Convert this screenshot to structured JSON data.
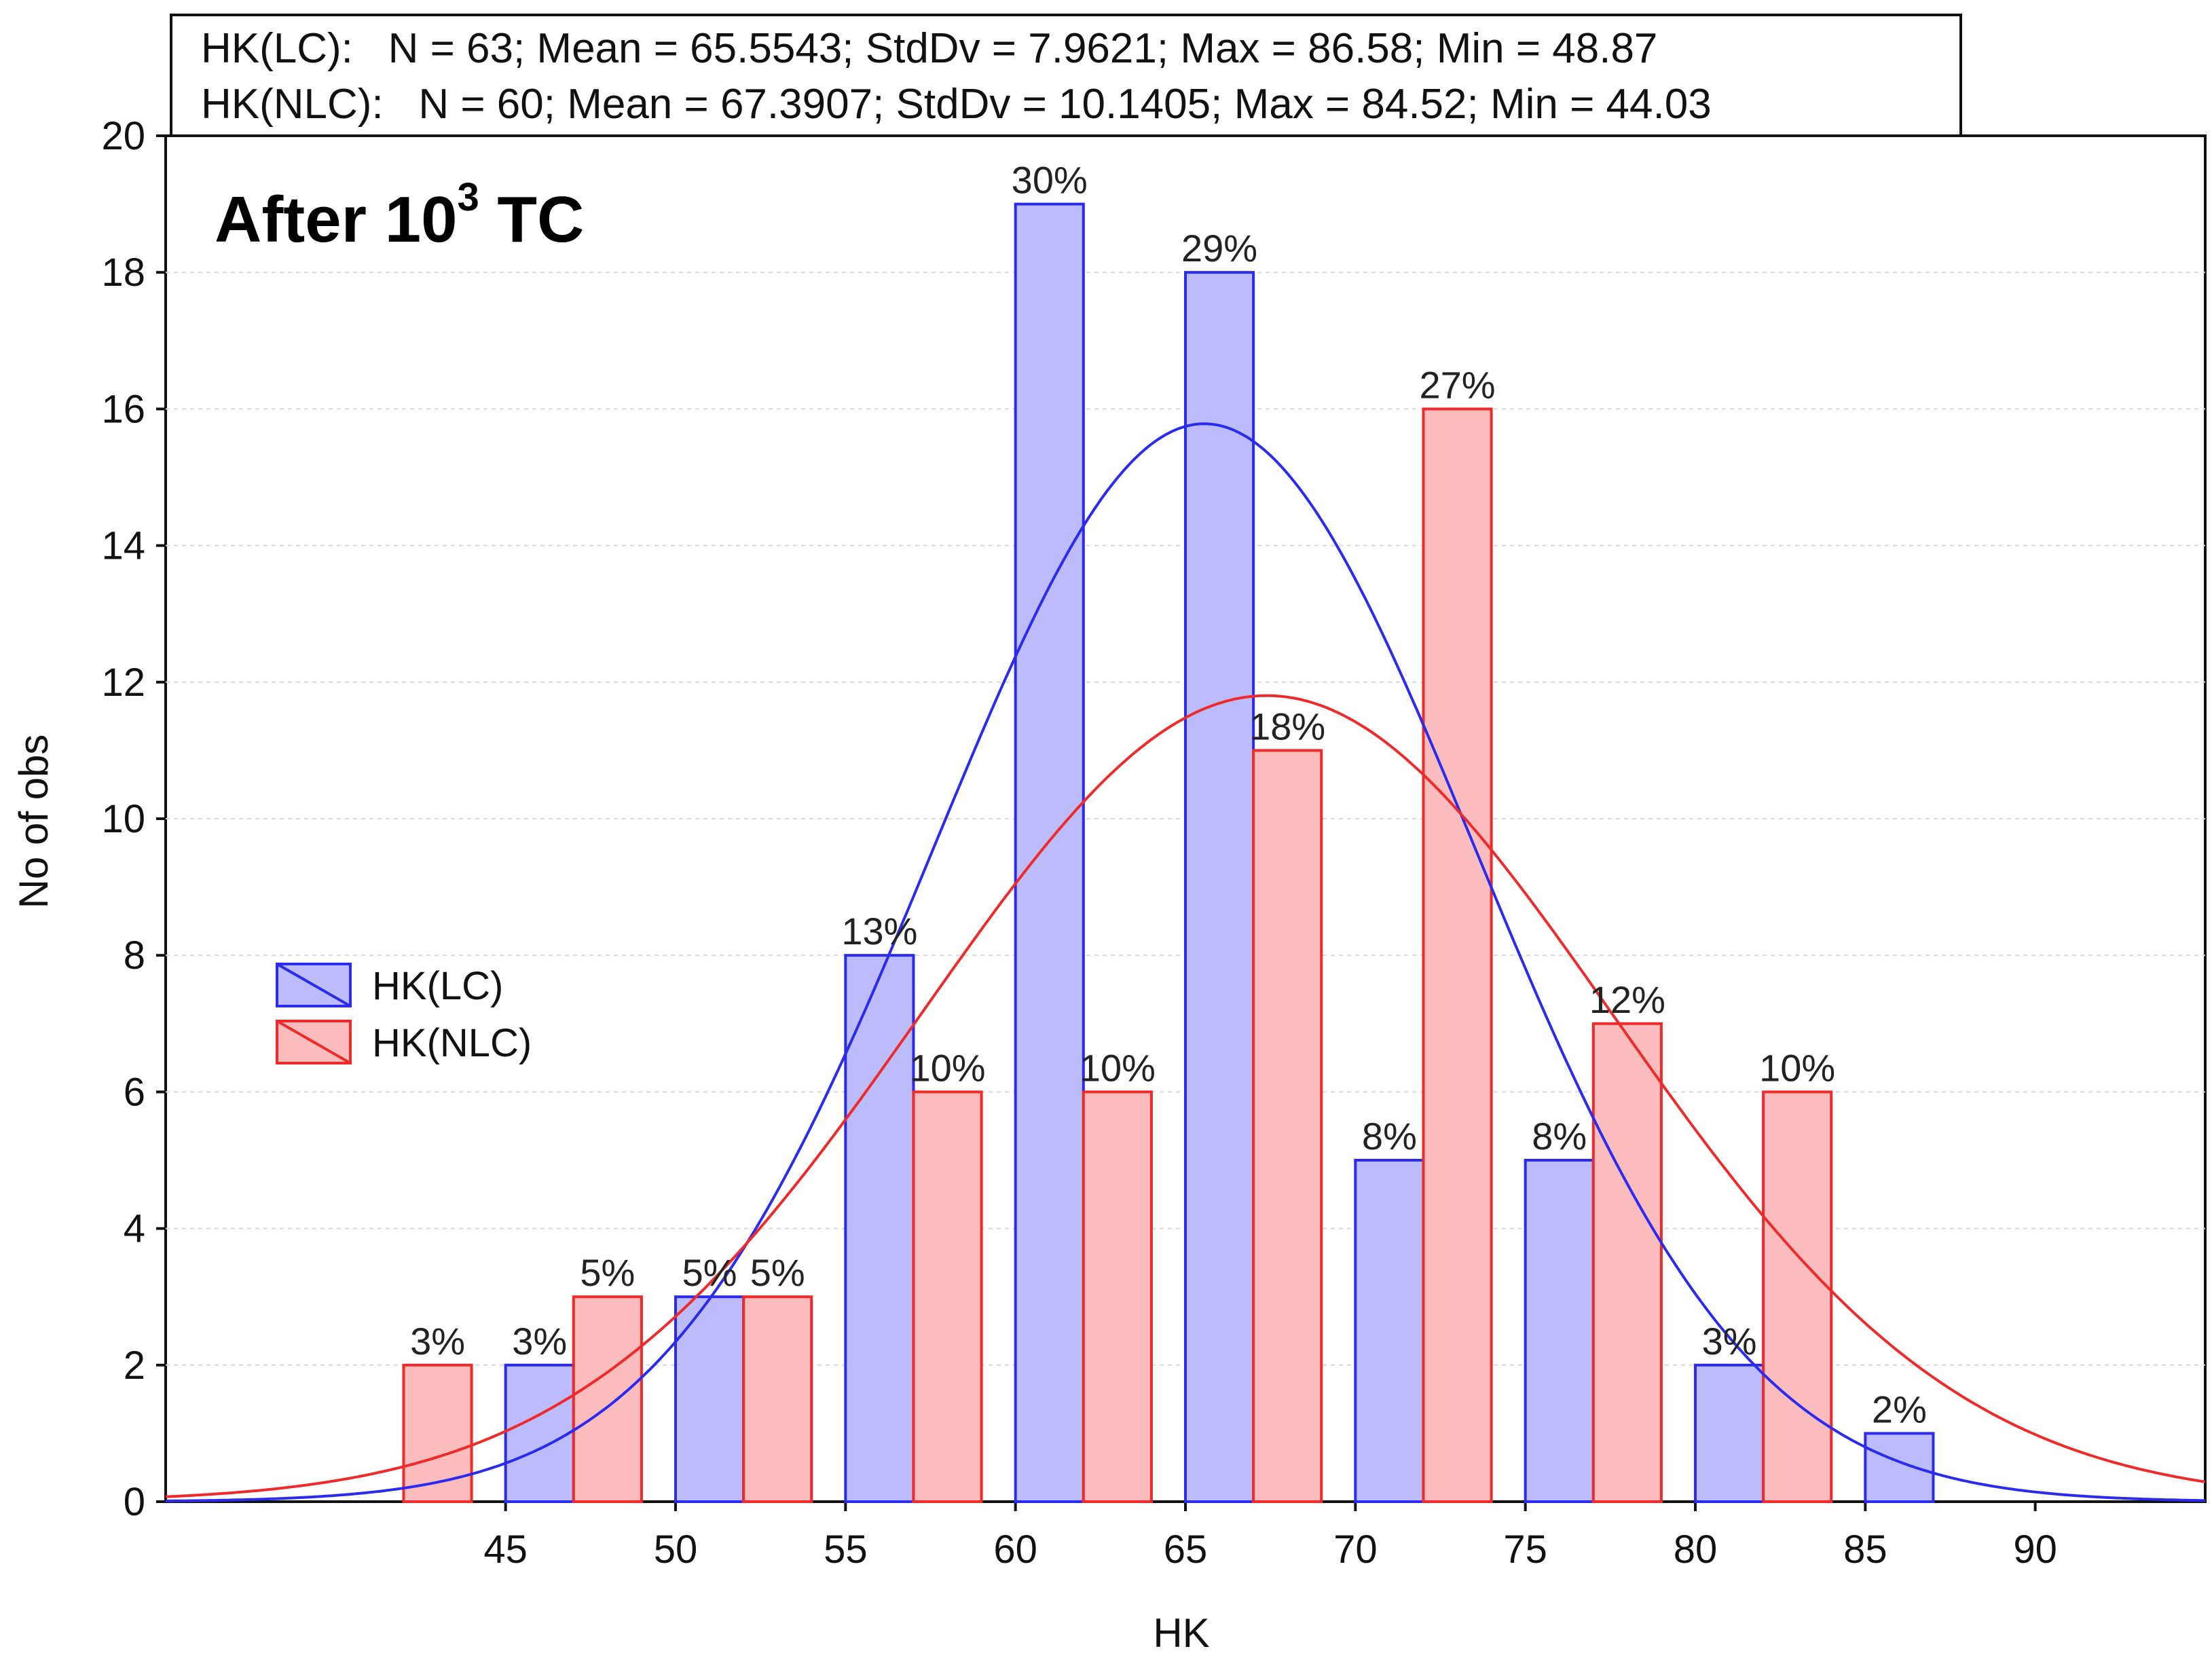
{
  "stats_box": {
    "line1": "HK(LC):   N = 63; Mean = 65.5543; StdDv = 7.9621; Max = 86.58; Min = 48.87",
    "line2": "HK(NLC):   N = 60; Mean = 67.3907; StdDv = 10.1405; Max = 84.52; Min = 44.03"
  },
  "chart_data": {
    "type": "bar",
    "title": "",
    "annotation": {
      "text": "After 10",
      "superscript": "3",
      "suffix": " TC"
    },
    "xlabel": "HK",
    "ylabel": "No of obs",
    "xlim": [
      35,
      95
    ],
    "ylim": [
      0,
      20
    ],
    "x_ticks": [
      45,
      50,
      55,
      60,
      65,
      70,
      75,
      80,
      85,
      90
    ],
    "y_ticks": [
      0,
      2,
      4,
      6,
      8,
      10,
      12,
      14,
      16,
      18,
      20
    ],
    "grid": true,
    "legend_position": "center-left",
    "series": [
      {
        "name": "HK(LC)",
        "color": "#2a2af0",
        "fill": "#bcbcfa",
        "n": 63,
        "mean": 65.5543,
        "std": 7.9621,
        "bins": [
          {
            "x_start": 45,
            "x_end": 47,
            "value": 2,
            "label": "3%"
          },
          {
            "x_start": 50,
            "x_end": 52,
            "value": 3,
            "label": "5%"
          },
          {
            "x_start": 55,
            "x_end": 57,
            "value": 8,
            "label": "13%"
          },
          {
            "x_start": 60,
            "x_end": 62,
            "value": 19,
            "label": "30%"
          },
          {
            "x_start": 65,
            "x_end": 67,
            "value": 18,
            "label": "29%"
          },
          {
            "x_start": 70,
            "x_end": 72,
            "value": 5,
            "label": "8%"
          },
          {
            "x_start": 75,
            "x_end": 77,
            "value": 5,
            "label": "8%"
          },
          {
            "x_start": 80,
            "x_end": 82,
            "value": 2,
            "label": "3%"
          },
          {
            "x_start": 85,
            "x_end": 87,
            "value": 1,
            "label": "2%"
          }
        ]
      },
      {
        "name": "HK(NLC)",
        "color": "#f02a2a",
        "fill": "#fabcbc",
        "n": 60,
        "mean": 67.3907,
        "std": 10.1405,
        "bins": [
          {
            "x_start": 42,
            "x_end": 44,
            "value": 2,
            "label": "3%"
          },
          {
            "x_start": 47,
            "x_end": 49,
            "value": 3,
            "label": "5%"
          },
          {
            "x_start": 52,
            "x_end": 54,
            "value": 3,
            "label": "5%"
          },
          {
            "x_start": 57,
            "x_end": 59,
            "value": 6,
            "label": "10%"
          },
          {
            "x_start": 62,
            "x_end": 64,
            "value": 6,
            "label": "10%"
          },
          {
            "x_start": 67,
            "x_end": 69,
            "value": 11,
            "label": "18%"
          },
          {
            "x_start": 72,
            "x_end": 74,
            "value": 16,
            "label": "27%"
          },
          {
            "x_start": 77,
            "x_end": 79,
            "value": 7,
            "label": "12%"
          },
          {
            "x_start": 82,
            "x_end": 84,
            "value": 6,
            "label": "10%"
          }
        ]
      }
    ],
    "fit_curves": [
      {
        "series": "HK(LC)",
        "color": "#2a2af0",
        "n": 63,
        "mean": 65.5543,
        "std": 7.9621,
        "bin_width": 5
      },
      {
        "series": "HK(NLC)",
        "color": "#f02a2a",
        "n": 60,
        "mean": 67.3907,
        "std": 10.1405,
        "bin_width": 5
      }
    ]
  }
}
